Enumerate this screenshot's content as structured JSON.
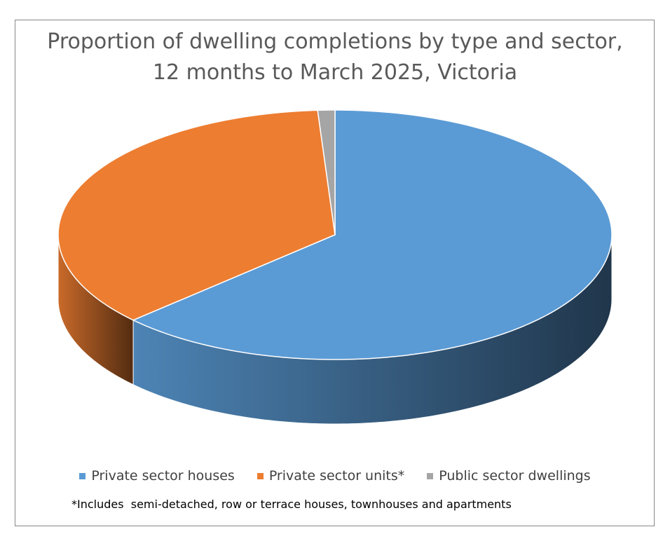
{
  "chart_data": {
    "type": "pie",
    "title": "Proportion of dwelling completions by type and sector, 12 months to March 2025, Victoria",
    "categories": [
      "Private sector houses",
      "Private sector units*",
      "Public sector dwellings"
    ],
    "values": [
      63,
      36,
      1
    ],
    "colors": [
      "#5b9bd5",
      "#ed7d31",
      "#a5a5a5"
    ],
    "legend": "bottom",
    "footnote": "*Includes  semi-detached, row or terrace houses, townhouses and apartments"
  }
}
